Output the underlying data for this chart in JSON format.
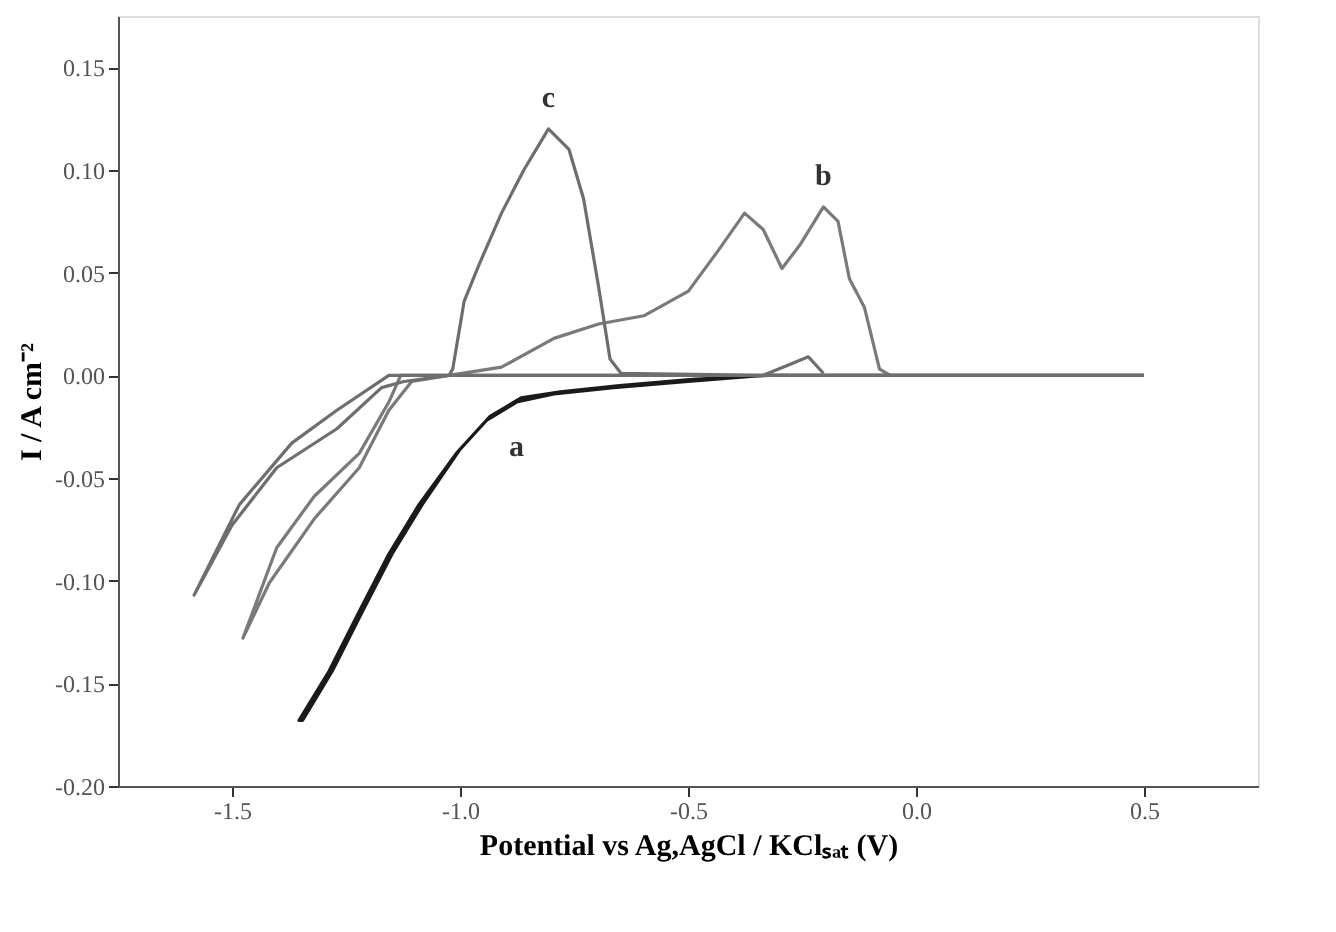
{
  "chart_data": {
    "type": "line",
    "xlabel": "Potential vs Ag,AgCl / KClₛₐₜ (V)",
    "ylabel": "I / A cm⁻²",
    "xlim": [
      -1.75,
      0.75
    ],
    "ylim": [
      -0.2,
      0.175
    ],
    "xticks": [
      {
        "value": -1.5,
        "label": "-1.5"
      },
      {
        "value": -1.0,
        "label": "-1.0"
      },
      {
        "value": -0.5,
        "label": "-0.5"
      },
      {
        "value": 0.0,
        "label": "0.0"
      },
      {
        "value": 0.5,
        "label": "0.5"
      }
    ],
    "yticks": [
      {
        "value": -0.2,
        "label": "-0.20"
      },
      {
        "value": -0.15,
        "label": "-0.15"
      },
      {
        "value": -0.1,
        "label": "-0.10"
      },
      {
        "value": -0.05,
        "label": "-0.05"
      },
      {
        "value": 0.0,
        "label": "0.00"
      },
      {
        "value": 0.05,
        "label": "0.05"
      },
      {
        "value": 0.1,
        "label": "0.10"
      },
      {
        "value": 0.15,
        "label": "0.15"
      }
    ],
    "grid": false,
    "line_style": "solid",
    "marker": "none",
    "series": [
      {
        "color": "#1a1a1a",
        "x": [
          0.5,
          -0.335,
          -0.5,
          -0.663,
          -0.794,
          -0.876,
          -0.942,
          -1.008,
          -1.09,
          -1.156,
          -1.221,
          -1.287,
          -1.353,
          -1.345,
          -1.28,
          -1.214,
          -1.149,
          -1.083,
          -1.0,
          -0.934,
          -0.866,
          -0.78,
          -0.65,
          -0.49,
          -0.32
        ],
        "values": [
          0,
          0,
          -0.003,
          -0.006,
          -0.009,
          -0.013,
          -0.022,
          -0.038,
          -0.063,
          -0.087,
          -0.115,
          -0.144,
          -0.168,
          -0.168,
          -0.144,
          -0.115,
          -0.087,
          -0.063,
          -0.036,
          -0.02,
          -0.011,
          -0.008,
          -0.005,
          -0.002,
          0
        ]
      },
      {
        "color": "#7a7a7a",
        "x": [
          0.5,
          -1.13,
          -1.156,
          -1.221,
          -1.32,
          -1.402,
          -1.476,
          -1.418,
          -1.32,
          -1.221,
          -1.156,
          -1.106,
          -1.024,
          -0.909,
          -0.794,
          -0.696,
          -0.597,
          -0.499,
          -0.433,
          -0.376,
          -0.335,
          -0.294,
          -0.253,
          -0.203,
          -0.171,
          -0.146,
          -0.113,
          -0.08,
          -0.056
        ],
        "values": [
          0,
          0,
          -0.013,
          -0.038,
          -0.059,
          -0.084,
          -0.128,
          -0.101,
          -0.07,
          -0.045,
          -0.017,
          -0.003,
          0,
          0.004,
          0.018,
          0.025,
          0.029,
          0.041,
          0.061,
          0.079,
          0.071,
          0.052,
          0.064,
          0.082,
          0.075,
          0.047,
          0.033,
          0.003,
          0
        ]
      },
      {
        "color": "#6e6e6e",
        "x": [
          0.5,
          -1.156,
          -1.27,
          -1.369,
          -1.484,
          -1.583,
          -1.5,
          -1.402,
          -1.27,
          -1.172,
          -1.123,
          -1.024,
          -1.016,
          -0.991,
          -0.958,
          -0.909,
          -0.86,
          -0.806,
          -0.761,
          -0.729,
          -0.696,
          -0.671,
          -0.647,
          -0.335,
          -0.269,
          -0.236,
          -0.203
        ],
        "values": [
          0,
          0,
          -0.017,
          -0.033,
          -0.063,
          -0.107,
          -0.073,
          -0.045,
          -0.026,
          -0.006,
          -0.003,
          0,
          0.003,
          0.036,
          0.054,
          0.079,
          0.1,
          0.12,
          0.11,
          0.086,
          0.043,
          0.008,
          0.001,
          0,
          0.006,
          0.009,
          0.001
        ]
      }
    ],
    "annotations": [
      {
        "text": "a",
        "x": -0.876,
        "y": -0.013
      },
      {
        "text": "b",
        "x": -0.203,
        "y": 0.082
      },
      {
        "text": "c",
        "x": -0.806,
        "y": 0.12
      }
    ]
  }
}
